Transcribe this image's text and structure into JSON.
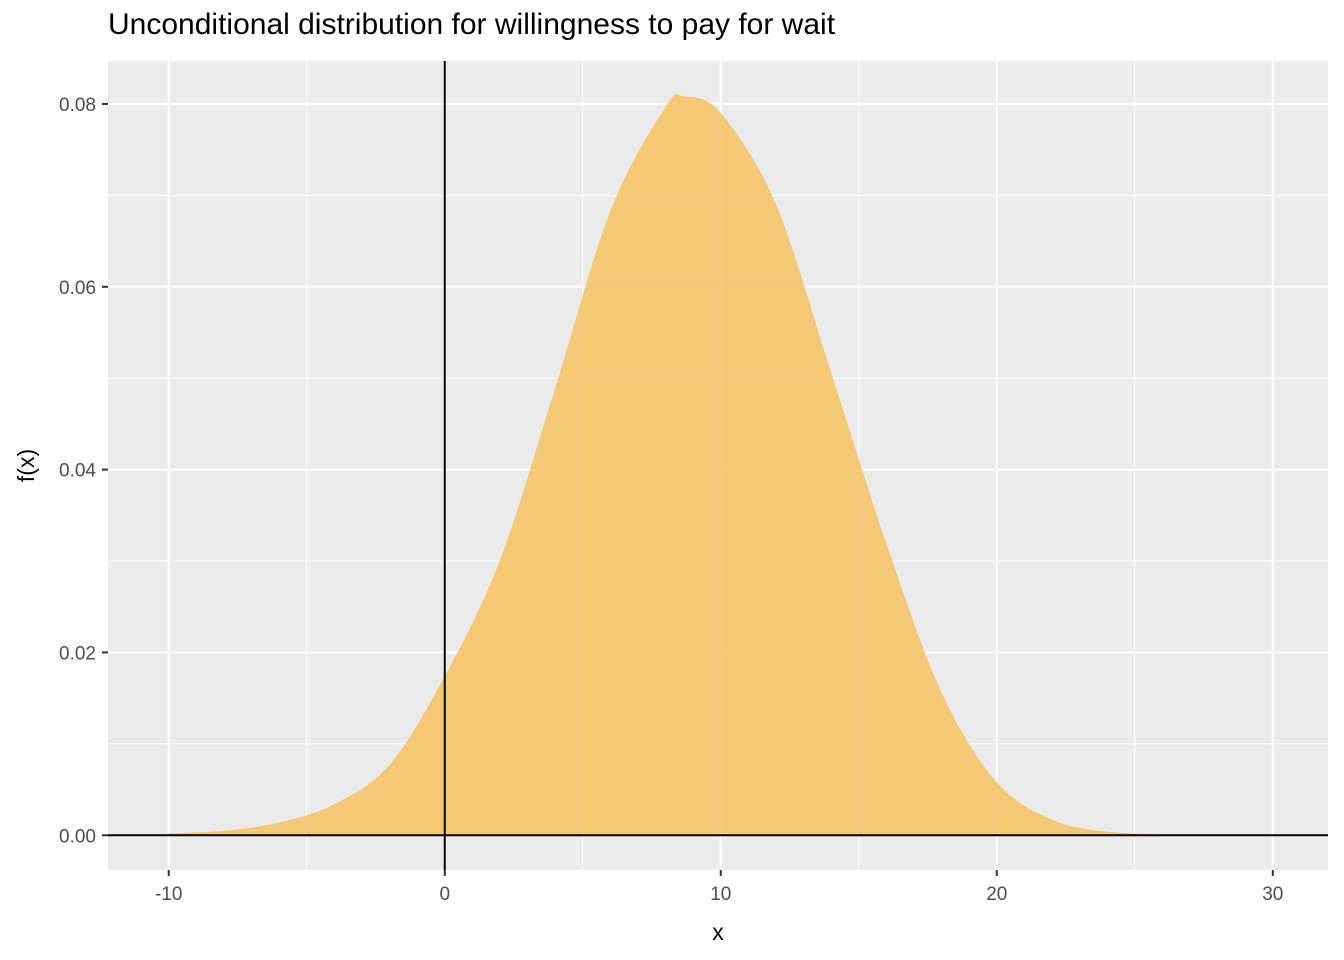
{
  "chart_data": {
    "type": "area",
    "title": "Unconditional distribution for willingness to pay for wait",
    "xlabel": "x",
    "ylabel": "f(x)",
    "xlim": [
      -12.2,
      32
    ],
    "ylim": [
      -0.0038,
      0.0847
    ],
    "x_ticks": [
      -10,
      0,
      10,
      20,
      30
    ],
    "x_tick_labels": [
      "-10",
      "0",
      "10",
      "20",
      "30"
    ],
    "y_ticks": [
      0,
      0.02,
      0.04,
      0.06,
      0.08
    ],
    "y_tick_labels": [
      "0.00",
      "0.02",
      "0.04",
      "0.06",
      "0.08"
    ],
    "grid": true,
    "reference_lines": {
      "vertical_x": 0,
      "horizontal_y": 0
    },
    "series": [
      {
        "fill_color": "#F5C46A",
        "x": [
          -10,
          -8,
          -6,
          -4,
          -2,
          0,
          2,
          4,
          6,
          8,
          8.7,
          10,
          12,
          14,
          16,
          18,
          20,
          22,
          24,
          26,
          28,
          30
        ],
        "y": [
          0.0002,
          0.0005,
          0.0014,
          0.0034,
          0.0077,
          0.0174,
          0.0301,
          0.0489,
          0.0683,
          0.0797,
          0.0808,
          0.079,
          0.069,
          0.0506,
          0.0319,
          0.0156,
          0.0058,
          0.0017,
          0.0004,
          0.0001,
          0.0,
          0.0
        ]
      }
    ]
  }
}
